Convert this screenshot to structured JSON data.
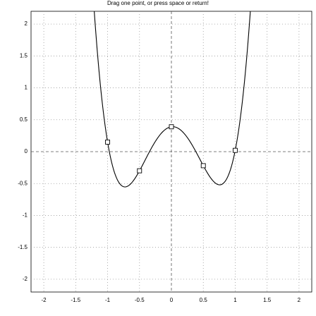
{
  "chart_data": {
    "type": "interpolation",
    "title": "Drag one point, or press space or return!",
    "x": [
      -1,
      -0.5,
      0,
      0.5,
      1
    ],
    "values": [
      0.15,
      -0.3,
      0.39,
      -0.22,
      0.02
    ],
    "xlim": [
      -2.2,
      2.2
    ],
    "ylim": [
      -2.2,
      2.2
    ],
    "xticks": [
      -2,
      -1.5,
      -1,
      -0.5,
      0,
      0.5,
      1,
      1.5,
      2
    ],
    "yticks": [
      -2,
      -1.5,
      -1,
      -0.5,
      0,
      0.5,
      1,
      1.5,
      2
    ],
    "grid": true,
    "color": "#000000"
  }
}
